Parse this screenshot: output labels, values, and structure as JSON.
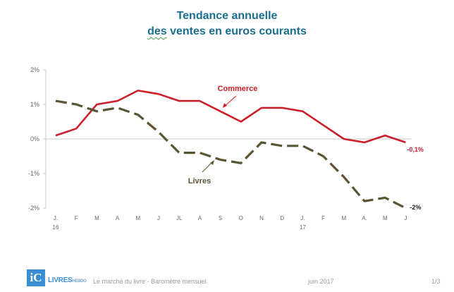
{
  "chart_data": {
    "type": "line",
    "title_line1": "Tendance annuelle",
    "title_line2_prefix": "des",
    "title_line2_rest": " ventes en euros courants",
    "categories": [
      "J.",
      "F",
      "M",
      "A",
      "M",
      "J",
      "JL",
      "A",
      "S",
      "O",
      "N",
      "D",
      "J.",
      "F",
      "M",
      "A.",
      "M",
      "J"
    ],
    "year_labels": [
      {
        "index": 0,
        "label": "16"
      },
      {
        "index": 12,
        "label": "17"
      }
    ],
    "y_ticks": [
      "2%",
      "1%",
      "0%",
      "-1%",
      "-2%"
    ],
    "ylim": [
      -2,
      2
    ],
    "grid": false,
    "series": [
      {
        "name": "Commerce",
        "color": "#cc1f2a",
        "style": "solid",
        "values": [
          0.1,
          0.3,
          1.0,
          1.1,
          1.4,
          1.3,
          1.1,
          1.1,
          0.8,
          0.5,
          0.9,
          0.9,
          0.8,
          0.4,
          0.0,
          -0.1,
          0.1,
          -0.1
        ],
        "end_label": "-0,1%"
      },
      {
        "name": "Livres",
        "color": "#5b5432",
        "style": "dashed",
        "values": [
          1.1,
          1.0,
          0.8,
          0.9,
          0.7,
          0.2,
          -0.4,
          -0.4,
          -0.6,
          -0.7,
          -0.1,
          -0.2,
          -0.2,
          -0.5,
          -1.1,
          -1.8,
          -1.7,
          -2.0
        ],
        "end_label": "-2%"
      }
    ]
  },
  "footer": {
    "logo_mark": "iC",
    "logo_word": "LIVRES",
    "logo_suffix": "HEBDO",
    "caption": "Le marché du livre - Baromètre mensuel",
    "date": "juin 2017",
    "page": "1/3"
  }
}
